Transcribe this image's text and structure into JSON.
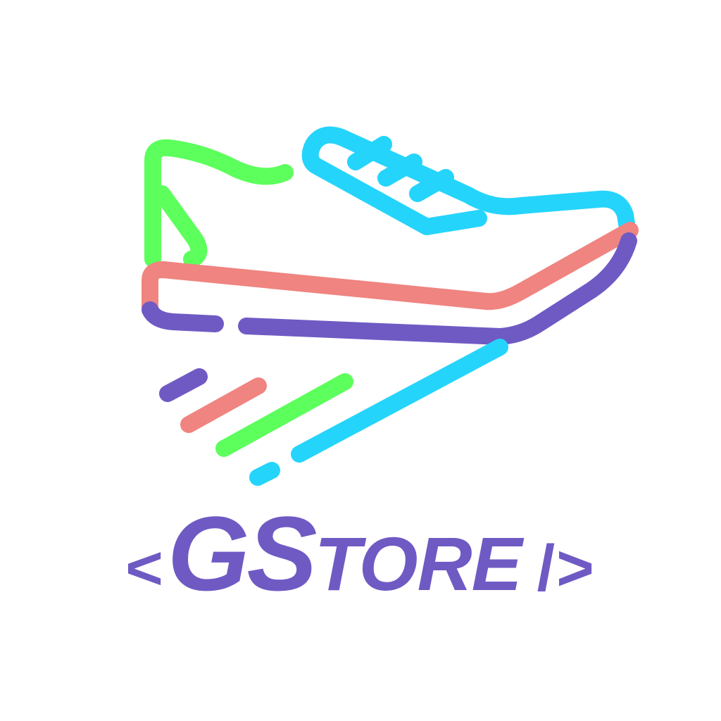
{
  "logo": {
    "wordmark": {
      "open_bracket": "<",
      "g": "G",
      "s": "S",
      "tore": "TORE",
      "close": "/>"
    },
    "colors": {
      "green": "#5cff5c",
      "cyan": "#25d4fb",
      "coral": "#ef8480",
      "purple": "#6f5ac4",
      "background": "#ffffff"
    }
  }
}
